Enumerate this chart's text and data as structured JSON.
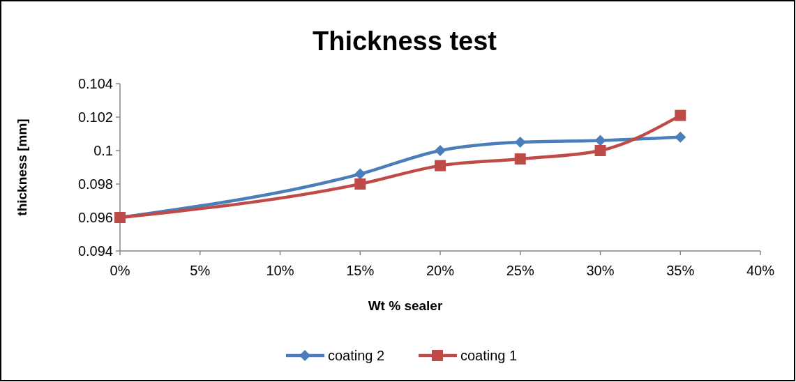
{
  "chart_data": {
    "type": "line",
    "title": "Thickness test",
    "xlabel": "Wt % sealer",
    "ylabel": "thickness [mm]",
    "x": [
      0,
      15,
      20,
      25,
      30,
      35
    ],
    "series": [
      {
        "name": "coating 2",
        "color": "#4a7ebb",
        "values": [
          0.096,
          0.0986,
          0.1,
          0.1005,
          0.1006,
          0.1008
        ],
        "marker": "diamond"
      },
      {
        "name": "coating 1",
        "color": "#be4b48",
        "values": [
          0.096,
          0.098,
          0.0991,
          0.0995,
          0.1,
          0.1021
        ],
        "marker": "square"
      }
    ],
    "xlim": [
      0,
      40
    ],
    "xticks": [
      {
        "value": 0,
        "label": "0%"
      },
      {
        "value": 5,
        "label": "5%"
      },
      {
        "value": 10,
        "label": "10%"
      },
      {
        "value": 15,
        "label": "15%"
      },
      {
        "value": 20,
        "label": "20%"
      },
      {
        "value": 25,
        "label": "25%"
      },
      {
        "value": 30,
        "label": "30%"
      },
      {
        "value": 35,
        "label": "35%"
      },
      {
        "value": 40,
        "label": "40%"
      }
    ],
    "ylim": [
      0.094,
      0.104
    ],
    "yticks": [
      {
        "value": 0.094,
        "label": "0.094"
      },
      {
        "value": 0.096,
        "label": "0.096"
      },
      {
        "value": 0.098,
        "label": "0.098"
      },
      {
        "value": 0.1,
        "label": "0.1"
      },
      {
        "value": 0.102,
        "label": "0.102"
      },
      {
        "value": 0.104,
        "label": "0.104"
      }
    ],
    "legend": "bottom",
    "grid": false,
    "line_style": "solid"
  }
}
